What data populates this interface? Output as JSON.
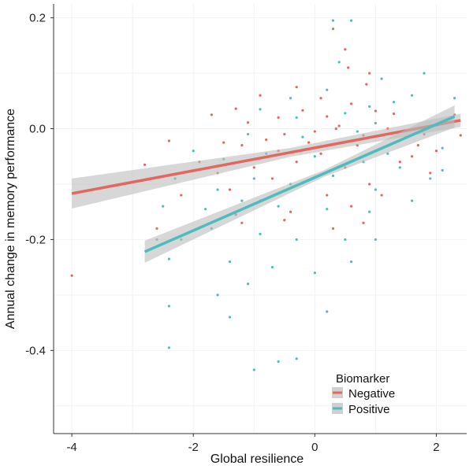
{
  "chart_data": {
    "type": "scatter",
    "title": "",
    "xlabel": "Global resilience",
    "ylabel": "Annual change in memory performance",
    "xlim": [
      -4.3,
      2.5
    ],
    "ylim": [
      -0.55,
      0.225
    ],
    "xticks": [
      {
        "v": -4,
        "label": "-4"
      },
      {
        "v": -2,
        "label": "-2"
      },
      {
        "v": 0,
        "label": "0"
      },
      {
        "v": 2,
        "label": "2"
      }
    ],
    "yticks": [
      {
        "v": 0.2,
        "label": "0.2"
      },
      {
        "v": 0.0,
        "label": "0.0"
      },
      {
        "v": -0.2,
        "label": "-0.2"
      },
      {
        "v": -0.4,
        "label": "-0.4"
      }
    ],
    "grid": true,
    "legend": {
      "title": "Biomarker",
      "placement": "bottom-right"
    },
    "series": [
      {
        "name": "Negative",
        "color": "#e2675f",
        "fit": {
          "x": [
            -4,
            2.4
          ],
          "y": [
            -0.117,
            0.015
          ],
          "ci_halfwidth": [
            0.027,
            0.008,
            0.012
          ]
        },
        "points": [
          [
            -4.0,
            -0.265
          ],
          [
            -2.8,
            -0.065
          ],
          [
            -2.4,
            -0.022
          ],
          [
            -1.3,
            0.036
          ],
          [
            0.3,
            0.18
          ],
          [
            0.5,
            0.143
          ],
          [
            0.55,
            0.11
          ],
          [
            0.9,
            0.1
          ],
          [
            0.85,
            0.08
          ],
          [
            -0.9,
            0.06
          ],
          [
            -0.3,
            0.075
          ],
          [
            0.1,
            0.055
          ],
          [
            -1.7,
            0.025
          ],
          [
            -1.1,
            0.011
          ],
          [
            -0.6,
            0.02
          ],
          [
            -0.2,
            0.033
          ],
          [
            0.2,
            0.022
          ],
          [
            0.6,
            0.045
          ],
          [
            1.0,
            0.032
          ],
          [
            1.3,
            0.027
          ],
          [
            -1.5,
            -0.025
          ],
          [
            -1.2,
            -0.03
          ],
          [
            -0.8,
            -0.02
          ],
          [
            -0.5,
            -0.01
          ],
          [
            0.0,
            -0.005
          ],
          [
            0.4,
            0.005
          ],
          [
            0.8,
            -0.012
          ],
          [
            1.2,
            0.0
          ],
          [
            1.7,
            -0.03
          ],
          [
            2.0,
            -0.04
          ],
          [
            2.3,
            0.025
          ],
          [
            2.4,
            -0.012
          ],
          [
            -1.9,
            -0.06
          ],
          [
            -1.6,
            -0.08
          ],
          [
            -1.0,
            -0.07
          ],
          [
            -0.7,
            -0.09
          ],
          [
            -0.3,
            -0.06
          ],
          [
            0.1,
            -0.045
          ],
          [
            0.5,
            -0.07
          ],
          [
            0.9,
            -0.1
          ],
          [
            1.4,
            -0.06
          ],
          [
            1.9,
            -0.08
          ],
          [
            -2.2,
            -0.12
          ],
          [
            -1.4,
            -0.11
          ],
          [
            -0.9,
            -0.13
          ],
          [
            -0.4,
            -0.15
          ],
          [
            0.2,
            -0.12
          ],
          [
            0.6,
            -0.14
          ],
          [
            1.1,
            -0.12
          ],
          [
            1.6,
            -0.05
          ],
          [
            -1.3,
            -0.155
          ],
          [
            -0.5,
            -0.165
          ],
          [
            0.3,
            -0.18
          ],
          [
            0.8,
            -0.17
          ],
          [
            -1.2,
            -0.17
          ],
          [
            -2.6,
            -0.18
          ],
          [
            -0.1,
            -0.025
          ],
          [
            0.7,
            -0.03
          ],
          [
            1.5,
            -0.015
          ],
          [
            -0.6,
            -0.04
          ],
          [
            0.35,
            0.0
          ],
          [
            1.8,
            -0.01
          ]
        ]
      },
      {
        "name": "Positive",
        "color": "#4dbcbe",
        "fit": {
          "x": [
            -2.8,
            2.3
          ],
          "y": [
            -0.222,
            0.022
          ],
          "ci_halfwidth": [
            0.02,
            0.006,
            0.02
          ]
        },
        "points": [
          [
            0.3,
            0.195
          ],
          [
            0.6,
            0.195
          ],
          [
            0.4,
            0.12
          ],
          [
            1.8,
            0.1
          ],
          [
            1.1,
            0.09
          ],
          [
            0.2,
            0.07
          ],
          [
            -0.4,
            0.055
          ],
          [
            1.6,
            0.06
          ],
          [
            2.3,
            0.055
          ],
          [
            -0.9,
            0.035
          ],
          [
            0.9,
            0.04
          ],
          [
            1.3,
            0.048
          ],
          [
            -0.3,
            0.02
          ],
          [
            0.5,
            0.028
          ],
          [
            1.0,
            0.01
          ],
          [
            -1.1,
            -0.01
          ],
          [
            -0.2,
            -0.015
          ],
          [
            0.7,
            -0.005
          ],
          [
            1.5,
            -0.015
          ],
          [
            2.1,
            -0.035
          ],
          [
            -2.0,
            -0.04
          ],
          [
            -1.5,
            -0.055
          ],
          [
            -0.8,
            -0.045
          ],
          [
            0.0,
            -0.05
          ],
          [
            0.8,
            -0.06
          ],
          [
            1.4,
            -0.07
          ],
          [
            2.1,
            -0.075
          ],
          [
            -2.3,
            -0.09
          ],
          [
            -1.6,
            -0.11
          ],
          [
            -1.0,
            -0.09
          ],
          [
            -0.4,
            -0.1
          ],
          [
            0.3,
            -0.085
          ],
          [
            1.0,
            -0.11
          ],
          [
            1.9,
            -0.09
          ],
          [
            -2.5,
            -0.14
          ],
          [
            -1.8,
            -0.145
          ],
          [
            -1.2,
            -0.13
          ],
          [
            -0.6,
            -0.14
          ],
          [
            0.2,
            -0.145
          ],
          [
            0.9,
            -0.15
          ],
          [
            1.6,
            -0.13
          ],
          [
            -2.6,
            -0.2
          ],
          [
            -2.2,
            -0.2
          ],
          [
            -1.7,
            -0.18
          ],
          [
            -0.9,
            -0.19
          ],
          [
            -0.3,
            -0.2
          ],
          [
            0.5,
            -0.2
          ],
          [
            1.0,
            -0.2
          ],
          [
            -2.4,
            -0.235
          ],
          [
            -1.4,
            -0.24
          ],
          [
            -0.7,
            -0.25
          ],
          [
            0.0,
            -0.26
          ],
          [
            0.6,
            -0.24
          ],
          [
            -1.6,
            -0.3
          ],
          [
            -1.4,
            -0.34
          ],
          [
            -2.4,
            -0.32
          ],
          [
            -2.4,
            -0.395
          ],
          [
            -1.0,
            -0.435
          ],
          [
            -0.3,
            -0.415
          ],
          [
            -0.6,
            -0.42
          ],
          [
            0.2,
            -0.33
          ],
          [
            -1.1,
            -0.28
          ],
          [
            1.2,
            -0.045
          ]
        ]
      }
    ]
  }
}
